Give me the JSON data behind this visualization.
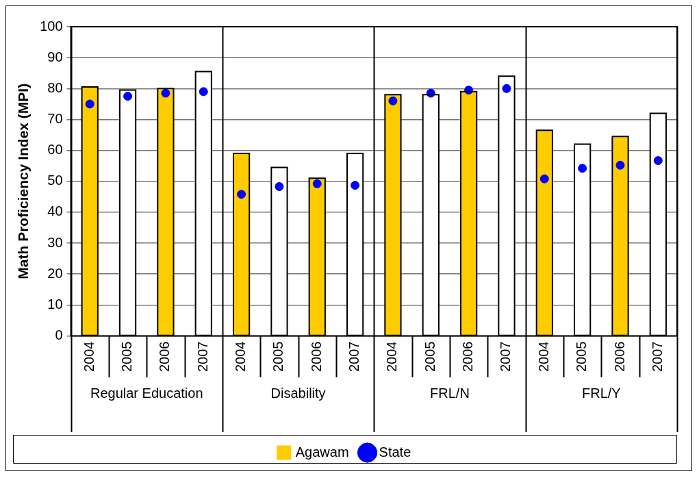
{
  "chart_data": {
    "type": "bar",
    "ylabel": "Math Proficiency Index (MPI)",
    "categories": [
      "2004",
      "2005",
      "2006",
      "2007",
      "2004",
      "2005",
      "2006",
      "2007",
      "2004",
      "2005",
      "2006",
      "2007",
      "2004",
      "2005",
      "2006",
      "2007"
    ],
    "series": [
      {
        "name": "Agawam",
        "color": "#ffcc00",
        "colors": [
          "#ffcc00",
          "#ffffff",
          "#ffcc00",
          "#ffffff",
          "#ffcc00",
          "#ffffff",
          "#ffcc00",
          "#ffffff",
          "#ffcc00",
          "#ffffff",
          "#ffcc00",
          "#ffffff",
          "#ffcc00",
          "#ffffff",
          "#ffcc00",
          "#ffffff"
        ],
        "values": [
          80.5,
          79.5,
          80,
          85.5,
          59,
          54.5,
          51,
          59,
          78,
          78,
          79,
          84,
          66.5,
          62,
          64.5,
          72
        ]
      },
      {
        "name": "State",
        "type": "scatter",
        "color": "#0000ff",
        "values": [
          75,
          77.5,
          78.5,
          79,
          45.8,
          48.3,
          49.2,
          48.7,
          76,
          78.5,
          79.5,
          80,
          50.8,
          54.2,
          55.2,
          56.7
        ]
      }
    ],
    "ylim": [
      0,
      100
    ],
    "yticks": [
      0,
      10,
      20,
      30,
      40,
      50,
      60,
      70,
      80,
      90,
      100
    ],
    "grid": "y",
    "legend": "bottom",
    "marker": "circle",
    "annotations": [
      "Regular Education",
      "Disability",
      "FRL/N",
      "FRL/Y"
    ]
  }
}
